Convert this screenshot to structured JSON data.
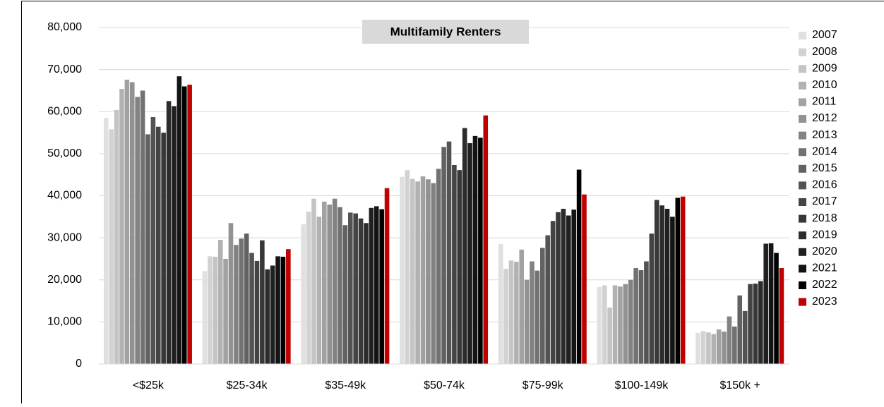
{
  "chart_data": {
    "type": "bar",
    "title": "Multifamily Renters",
    "categories": [
      "<$25k",
      "$25-34k",
      "$35-49k",
      "$50-74k",
      "$75-99k",
      "$100-149k",
      "$150k +"
    ],
    "ylim": [
      0,
      80000
    ],
    "yticks": [
      0,
      {
        "value": 10000,
        "label": "10,000"
      },
      {
        "value": 20000,
        "label": "20,000"
      },
      {
        "value": 30000,
        "label": "30,000"
      },
      {
        "value": 40000,
        "label": "40,000"
      },
      {
        "value": 50000,
        "label": "50,000"
      },
      {
        "value": 60000,
        "label": "60,000"
      },
      {
        "value": 70000,
        "label": "70,000"
      },
      {
        "value": 80000,
        "label": "80,000"
      }
    ],
    "grid": true,
    "legend": "right",
    "series": [
      {
        "name": "2007",
        "color": "#e0e0e0",
        "values": [
          58500,
          22100,
          33200,
          44500,
          28500,
          18300,
          7400
        ]
      },
      {
        "name": "2008",
        "color": "#d2d2d2",
        "values": [
          55800,
          25600,
          36200,
          46100,
          22600,
          18700,
          7800
        ]
      },
      {
        "name": "2009",
        "color": "#c4c4c4",
        "values": [
          60400,
          25500,
          39300,
          44000,
          24600,
          13400,
          7500
        ]
      },
      {
        "name": "2010",
        "color": "#b2b2b2",
        "values": [
          65400,
          29500,
          35000,
          43400,
          24300,
          18700,
          7100
        ]
      },
      {
        "name": "2011",
        "color": "#a2a2a2",
        "values": [
          67600,
          25000,
          38600,
          44600,
          27200,
          18400,
          8200
        ]
      },
      {
        "name": "2012",
        "color": "#929292",
        "values": [
          67000,
          33500,
          37900,
          43900,
          20000,
          19000,
          7700
        ]
      },
      {
        "name": "2013",
        "color": "#828282",
        "values": [
          63500,
          28300,
          39300,
          43000,
          24400,
          20000,
          11300
        ]
      },
      {
        "name": "2014",
        "color": "#727272",
        "values": [
          65000,
          29800,
          37300,
          46400,
          22200,
          22800,
          8900
        ]
      },
      {
        "name": "2015",
        "color": "#626262",
        "values": [
          54600,
          31000,
          33000,
          51600,
          27600,
          22300,
          16300
        ]
      },
      {
        "name": "2016",
        "color": "#535353",
        "values": [
          58700,
          26400,
          36000,
          52900,
          30600,
          24400,
          12600
        ]
      },
      {
        "name": "2017",
        "color": "#444444",
        "values": [
          56400,
          24500,
          35800,
          47300,
          34000,
          31000,
          19000
        ]
      },
      {
        "name": "2018",
        "color": "#383838",
        "values": [
          55000,
          29400,
          34600,
          46100,
          36100,
          39000,
          19100
        ]
      },
      {
        "name": "2019",
        "color": "#2c2c2c",
        "values": [
          62500,
          22500,
          33500,
          56100,
          36900,
          37700,
          19700
        ]
      },
      {
        "name": "2020",
        "color": "#202020",
        "values": [
          61300,
          23400,
          37100,
          52500,
          35300,
          36900,
          28600
        ]
      },
      {
        "name": "2021",
        "color": "#141414",
        "values": [
          68400,
          25600,
          37500,
          54200,
          36700,
          35000,
          28700
        ]
      },
      {
        "name": "2022",
        "color": "#000000",
        "values": [
          66000,
          25500,
          36800,
          53800,
          46200,
          39500,
          26400
        ]
      },
      {
        "name": "2023",
        "color": "#c00000",
        "values": [
          66400,
          27300,
          41800,
          59100,
          40300,
          39800,
          22800
        ]
      }
    ]
  }
}
